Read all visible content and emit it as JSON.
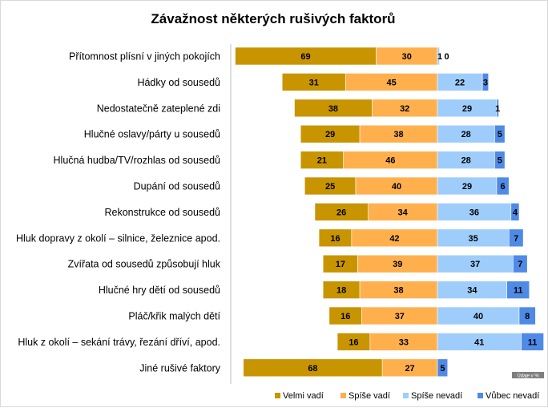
{
  "chart_data": {
    "type": "bar",
    "title": "Závažnost některých rušivých faktorů",
    "note": "Údaje v %",
    "categories": [
      "Přítomnost plísní v jiných pokojích",
      "Hádky od sousedů",
      "Nedostatečně zateplené zdi",
      "Hlučné oslavy/párty u sousedů",
      "Hlučná hudba/TV/rozhlas od sousedů",
      "Dupání od sousedů",
      "Rekonstrukce od sousedů",
      "Hluk dopravy z okolí – silnice, železnice apod.",
      "Zvířata od sousedů způsobují hluk",
      "Hlučné hry dětí od sousedů",
      "Pláč/křik malých dětí",
      "Hluk z okolí – sekání trávy, řezání dříví, apod.",
      "Jiné rušivé faktory"
    ],
    "series": [
      {
        "name": "Velmi vadí",
        "color": "#c89400",
        "side": "negative",
        "values": [
          69,
          31,
          38,
          29,
          21,
          25,
          26,
          16,
          17,
          18,
          16,
          16,
          68
        ]
      },
      {
        "name": "Spíše vadí",
        "color": "#ffb04d",
        "side": "negative",
        "values": [
          30,
          45,
          32,
          38,
          46,
          40,
          34,
          42,
          39,
          38,
          37,
          33,
          27
        ]
      },
      {
        "name": "Spíše nevadí",
        "color": "#9fcdfb",
        "side": "positive",
        "values": [
          1,
          22,
          29,
          28,
          28,
          29,
          36,
          35,
          37,
          34,
          40,
          41,
          0
        ]
      },
      {
        "name": "Vůbec nevadí",
        "color": "#4f8ae6",
        "side": "positive",
        "values": [
          0,
          3,
          1,
          5,
          5,
          6,
          4,
          7,
          7,
          11,
          8,
          11,
          5
        ]
      }
    ],
    "legend_position": "bottom-right",
    "grid": false
  }
}
